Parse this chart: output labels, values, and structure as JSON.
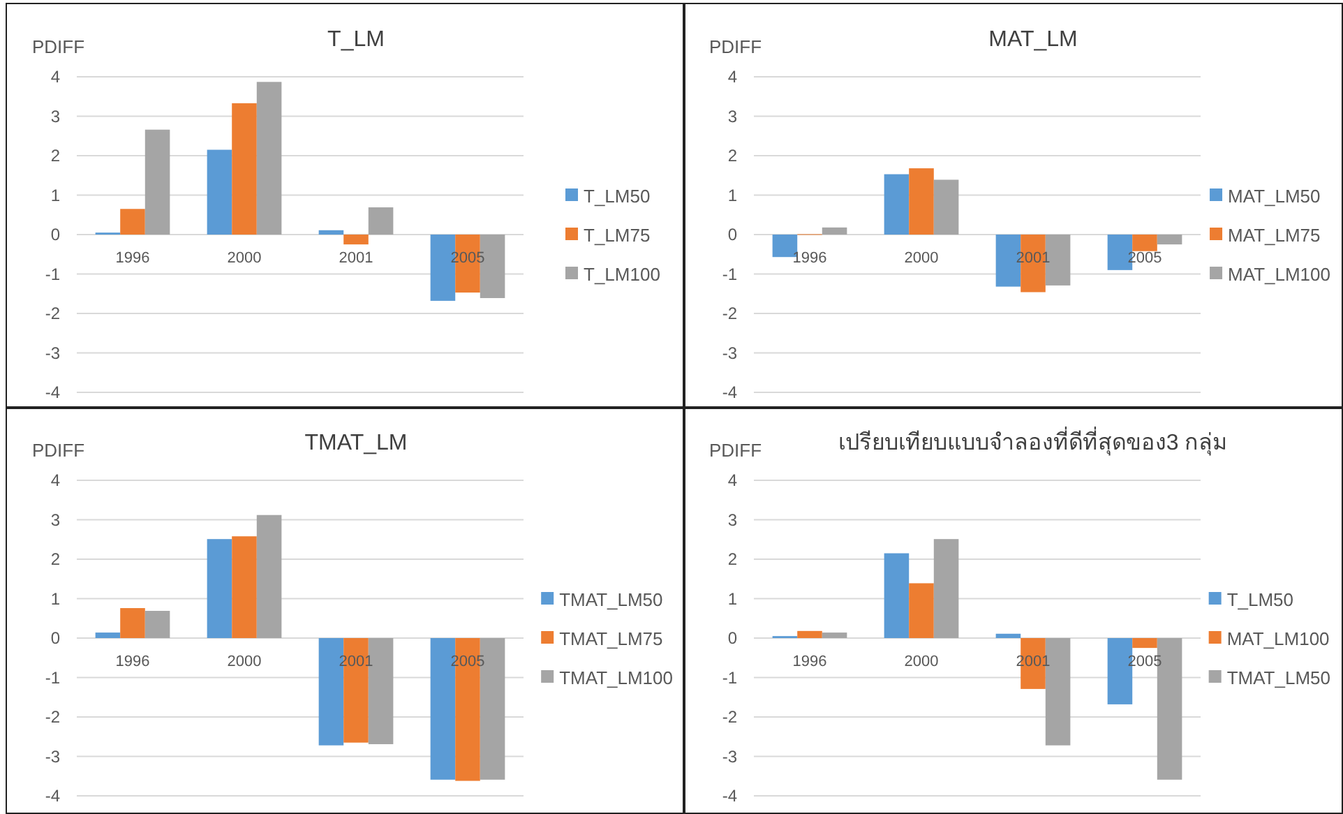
{
  "chart_data": [
    {
      "type": "bar",
      "title": "T_LM",
      "ylabel": "PDIFF",
      "categories": [
        "1996",
        "2000",
        "2001",
        "2005"
      ],
      "ylim": [
        -4,
        4
      ],
      "yticks": [
        -4,
        -3,
        -2,
        -1,
        0,
        1,
        2,
        3,
        4
      ],
      "grid": "y",
      "legend": "right",
      "series": [
        {
          "name": "T_LM50",
          "color": "#5b9bd5",
          "values": [
            0.05,
            2.15,
            0.11,
            -1.68
          ]
        },
        {
          "name": "T_LM75",
          "color": "#ed7d31",
          "values": [
            0.65,
            3.33,
            -0.25,
            -1.47
          ]
        },
        {
          "name": "T_LM100",
          "color": "#a5a5a5",
          "values": [
            2.66,
            3.87,
            0.69,
            -1.61
          ]
        }
      ]
    },
    {
      "type": "bar",
      "title": "MAT_LM",
      "ylabel": "PDIFF",
      "categories": [
        "1996",
        "2000",
        "2001",
        "2005"
      ],
      "ylim": [
        -4,
        4
      ],
      "yticks": [
        -4,
        -3,
        -2,
        -1,
        0,
        1,
        2,
        3,
        4
      ],
      "grid": "y",
      "legend": "right",
      "series": [
        {
          "name": "MAT_LM50",
          "color": "#5b9bd5",
          "values": [
            -0.57,
            1.53,
            -1.32,
            -0.9
          ]
        },
        {
          "name": "MAT_LM75",
          "color": "#ed7d31",
          "values": [
            0.01,
            1.68,
            -1.46,
            -0.42
          ]
        },
        {
          "name": "MAT_LM100",
          "color": "#a5a5a5",
          "values": [
            0.18,
            1.39,
            -1.29,
            -0.25
          ]
        }
      ]
    },
    {
      "type": "bar",
      "title": "TMAT_LM",
      "ylabel": "PDIFF",
      "categories": [
        "1996",
        "2000",
        "2001",
        "2005"
      ],
      "ylim": [
        -4,
        4
      ],
      "yticks": [
        -4,
        -3,
        -2,
        -1,
        0,
        1,
        2,
        3,
        4
      ],
      "grid": "y",
      "legend": "right",
      "series": [
        {
          "name": "TMAT_LM50",
          "color": "#5b9bd5",
          "values": [
            0.14,
            2.51,
            -2.72,
            -3.59
          ]
        },
        {
          "name": "TMAT_LM75",
          "color": "#ed7d31",
          "values": [
            0.76,
            2.58,
            -2.65,
            -3.62
          ]
        },
        {
          "name": "TMAT_LM100",
          "color": "#a5a5a5",
          "values": [
            0.69,
            3.12,
            -2.69,
            -3.59
          ]
        }
      ]
    },
    {
      "type": "bar",
      "title": "เปรียบเทียบแบบจำลองที่ดีที่สุดของ3 กลุ่ม",
      "ylabel": "PDIFF",
      "categories": [
        "1996",
        "2000",
        "2001",
        "2005"
      ],
      "ylim": [
        -4,
        4
      ],
      "yticks": [
        -4,
        -3,
        -2,
        -1,
        0,
        1,
        2,
        3,
        4
      ],
      "grid": "y",
      "legend": "right",
      "series": [
        {
          "name": "T_LM50",
          "color": "#5b9bd5",
          "values": [
            0.05,
            2.15,
            0.11,
            -1.68
          ]
        },
        {
          "name": "MAT_LM100",
          "color": "#ed7d31",
          "values": [
            0.18,
            1.39,
            -1.29,
            -0.25
          ]
        },
        {
          "name": "TMAT_LM50",
          "color": "#a5a5a5",
          "values": [
            0.14,
            2.51,
            -2.72,
            -3.59
          ]
        }
      ]
    }
  ]
}
